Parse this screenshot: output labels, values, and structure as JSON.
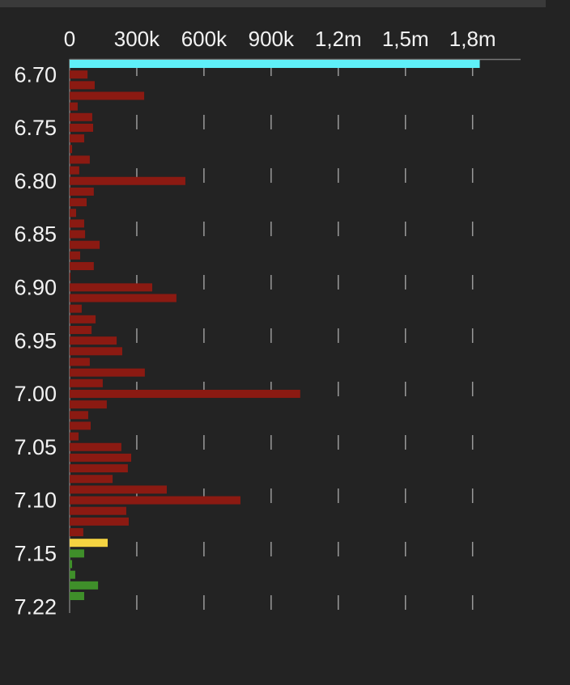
{
  "chart_data": {
    "type": "bar",
    "orientation": "horizontal",
    "categories": [
      null,
      "6.70",
      null,
      null,
      null,
      null,
      "6.75",
      null,
      null,
      null,
      null,
      "6.80",
      null,
      null,
      null,
      null,
      "6.85",
      null,
      null,
      null,
      null,
      "6.90",
      null,
      null,
      null,
      null,
      "6.95",
      null,
      null,
      null,
      null,
      "7.00",
      null,
      null,
      null,
      null,
      "7.05",
      null,
      null,
      null,
      null,
      "7.10",
      null,
      null,
      null,
      null,
      "7.15",
      null,
      null,
      null,
      null,
      "7.22"
    ],
    "values": [
      1832000,
      80000,
      112000,
      333000,
      36000,
      101000,
      105000,
      65000,
      11000,
      90000,
      43000,
      517000,
      108000,
      76000,
      29000,
      65000,
      69000,
      134000,
      47000,
      108000,
      4000,
      369000,
      477000,
      54000,
      116000,
      98000,
      210000,
      235000,
      90000,
      336000,
      148000,
      1030000,
      166000,
      83000,
      94000,
      40000,
      231000,
      275000,
      260000,
      192000,
      434000,
      763000,
      253000,
      264000,
      61000,
      170000,
      65000,
      11000,
      25000,
      127000,
      65000,
      null
    ],
    "colors": [
      "#5ff0f8",
      "#8b1a12",
      "#8b1a12",
      "#8b1a12",
      "#8b1a12",
      "#8b1a12",
      "#8b1a12",
      "#8b1a12",
      "#8b1a12",
      "#8b1a12",
      "#8b1a12",
      "#8b1a12",
      "#8b1a12",
      "#8b1a12",
      "#8b1a12",
      "#8b1a12",
      "#8b1a12",
      "#8b1a12",
      "#8b1a12",
      "#8b1a12",
      "#8b1a12",
      "#8b1a12",
      "#8b1a12",
      "#8b1a12",
      "#8b1a12",
      "#8b1a12",
      "#8b1a12",
      "#8b1a12",
      "#8b1a12",
      "#8b1a12",
      "#8b1a12",
      "#8b1a12",
      "#8b1a12",
      "#8b1a12",
      "#8b1a12",
      "#8b1a12",
      "#8b1a12",
      "#8b1a12",
      "#8b1a12",
      "#8b1a12",
      "#8b1a12",
      "#8b1a12",
      "#8b1a12",
      "#8b1a12",
      "#8b1a12",
      "#f5d442",
      "#3f8f2a",
      "#3f8f2a",
      "#3f8f2a",
      "#3f8f2a",
      "#3f8f2a",
      null
    ],
    "xlim": [
      0,
      2000000
    ],
    "xticks": [
      0,
      {
        "value": 300000,
        "label": "300k"
      },
      {
        "value": 600000,
        "label": "600k"
      },
      {
        "value": 900000,
        "label": "900k"
      },
      {
        "value": 1200000,
        "label": "1,2m"
      },
      {
        "value": 1500000,
        "label": "1,5m"
      },
      {
        "value": 1800000,
        "label": "1,8m"
      }
    ],
    "grid": true
  }
}
